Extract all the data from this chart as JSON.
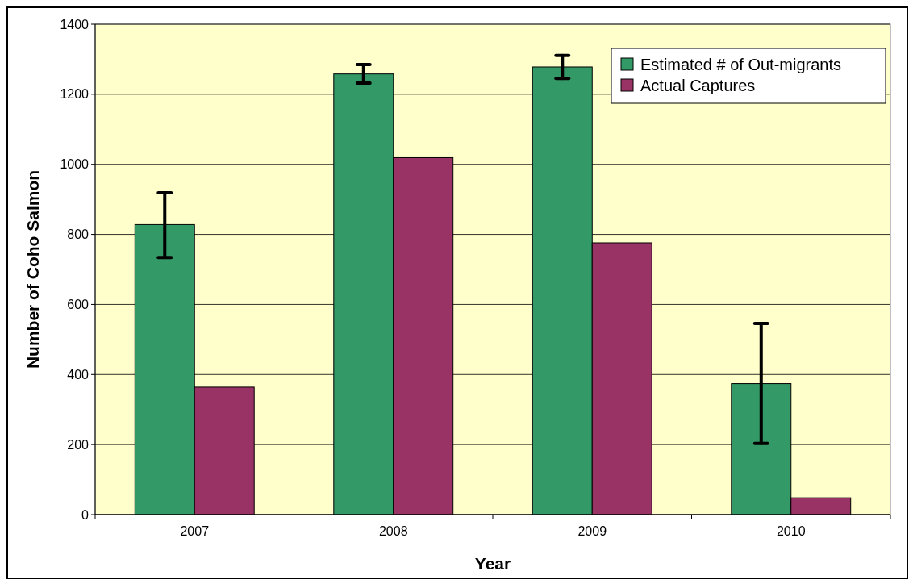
{
  "chart_data": {
    "type": "bar",
    "xlabel": "Year",
    "ylabel": "Number of Coho Salmon",
    "categories": [
      "2007",
      "2008",
      "2009",
      "2010"
    ],
    "series": [
      {
        "name": "Estimated # of Out-migrants",
        "color": "#339966",
        "values": [
          828,
          1258,
          1278,
          374
        ],
        "errors": [
          [
            734,
            919
          ],
          [
            1232,
            1285
          ],
          [
            1245,
            1311
          ],
          [
            203,
            546
          ]
        ]
      },
      {
        "name": "Actual Captures",
        "color": "#993366",
        "values": [
          364,
          1019,
          776,
          48
        ]
      }
    ],
    "ylim": [
      0,
      1400
    ],
    "yticks": [
      0,
      200,
      400,
      600,
      800,
      1000,
      1200,
      1400
    ],
    "grid": "y",
    "legend": "top right"
  }
}
